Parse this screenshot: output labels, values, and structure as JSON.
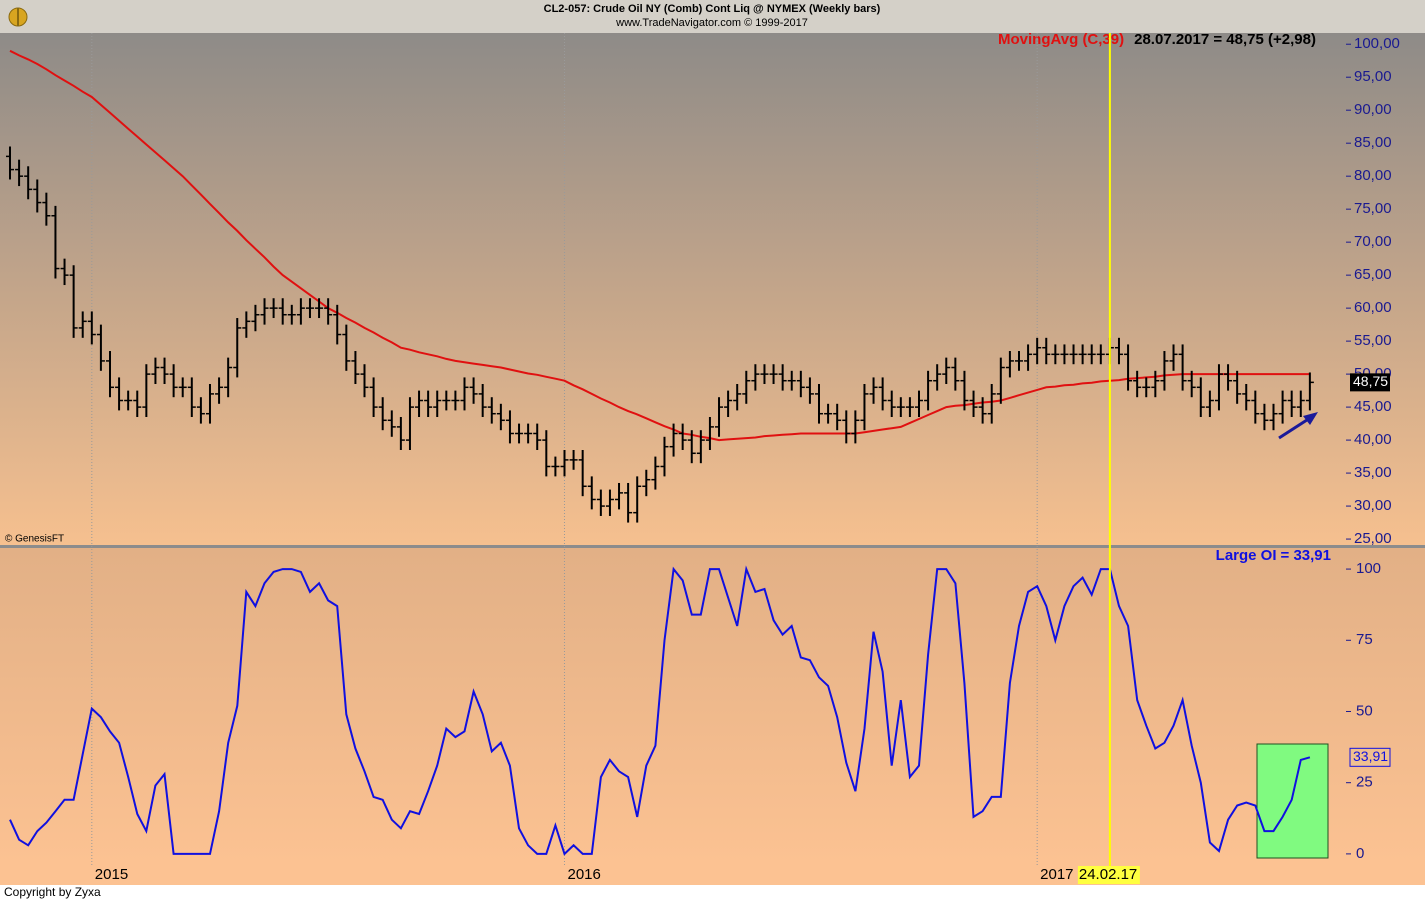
{
  "chart_data": {
    "type": "ohlc",
    "title": "CL2-057:  Crude Oil NY (Comb) Cont Liq @ NYMEX  (Weekly bars)",
    "subtitle": "www.TradeNavigator.com © 1999-2017",
    "source_note": "© GenesisFT",
    "copyright": "Copyright by Zyxa",
    "readout": "28.07.2017 = 48,75 (+2,98)",
    "highlight_category": "24.02.17",
    "categories": [
      null,
      null,
      null,
      null,
      null,
      null,
      null,
      null,
      null,
      "2015",
      null,
      null,
      null,
      null,
      null,
      null,
      null,
      null,
      null,
      null,
      null,
      null,
      null,
      null,
      null,
      null,
      null,
      null,
      null,
      null,
      null,
      null,
      null,
      null,
      null,
      null,
      null,
      null,
      null,
      null,
      null,
      null,
      null,
      null,
      null,
      null,
      null,
      null,
      null,
      null,
      null,
      null,
      null,
      null,
      null,
      null,
      null,
      null,
      null,
      null,
      null,
      "2016",
      null,
      null,
      null,
      null,
      null,
      null,
      null,
      null,
      null,
      null,
      null,
      null,
      null,
      null,
      null,
      null,
      null,
      null,
      null,
      null,
      null,
      null,
      null,
      null,
      null,
      null,
      null,
      null,
      null,
      null,
      null,
      null,
      null,
      null,
      null,
      null,
      null,
      null,
      null,
      null,
      null,
      null,
      null,
      null,
      null,
      null,
      null,
      null,
      null,
      null,
      null,
      "2017",
      null,
      null,
      null,
      null,
      null,
      null,
      null,
      "24.02.17",
      null,
      null,
      null,
      null,
      null,
      null,
      null,
      null,
      null,
      null,
      null,
      null,
      null,
      null,
      null,
      null,
      null,
      null,
      null,
      null,
      null,
      null
    ],
    "ohlc": {
      "color": "#000000",
      "open": [
        83,
        81,
        80,
        78,
        76,
        74,
        66,
        65,
        57,
        58,
        56,
        52,
        48,
        46,
        46,
        45,
        50,
        51,
        50,
        48,
        48,
        45,
        44,
        47,
        48,
        51,
        57,
        58,
        59,
        60,
        60,
        59,
        59,
        60,
        60,
        60,
        59,
        56,
        52,
        50,
        48,
        45,
        43,
        42,
        40,
        45,
        46,
        45,
        46,
        46,
        46,
        48,
        47,
        45,
        44,
        43,
        41,
        41,
        41,
        40,
        36,
        36,
        37,
        37,
        33,
        31,
        30,
        31,
        32,
        29,
        33,
        34,
        36,
        39,
        41,
        40,
        38,
        40,
        42,
        45,
        46,
        47,
        49,
        50,
        50,
        50,
        49,
        49,
        48,
        47,
        44,
        44,
        43,
        41,
        43,
        47,
        48,
        46,
        45,
        45,
        45,
        46,
        49,
        50,
        51,
        49,
        46,
        45,
        44,
        47,
        51,
        52,
        52,
        53,
        54,
        53,
        53,
        53,
        53,
        53,
        53,
        53,
        54,
        53,
        49,
        48,
        48,
        49,
        52,
        53,
        49,
        48,
        45,
        46,
        50,
        49,
        47,
        46,
        44,
        43,
        44,
        46,
        45,
        46
      ],
      "high": [
        84.5,
        82.5,
        81.5,
        79.5,
        77.5,
        75.5,
        67.5,
        66.5,
        59.5,
        59.5,
        57.5,
        53.5,
        49.5,
        47.5,
        47.5,
        51.5,
        52.5,
        52.5,
        51.5,
        49.5,
        49.5,
        46.5,
        48.5,
        49.5,
        52.5,
        58.5,
        59.5,
        60.5,
        61.5,
        61.5,
        61.5,
        60.5,
        61.5,
        61.5,
        61.5,
        61.5,
        60.5,
        57.5,
        53.5,
        51.5,
        49.5,
        46.5,
        44.5,
        43.5,
        46.5,
        47.5,
        47.5,
        47.5,
        47.5,
        47.5,
        49.5,
        49.5,
        48.5,
        46.5,
        45.5,
        44.5,
        42.5,
        42.5,
        42.5,
        41.5,
        37.5,
        38.5,
        38.5,
        38.5,
        34.5,
        32.5,
        32.5,
        33.5,
        33.5,
        34.5,
        35.5,
        37.5,
        40.5,
        42.5,
        42.5,
        41.5,
        41.5,
        43.5,
        46.5,
        47.5,
        48.5,
        50.5,
        51.5,
        51.5,
        51.5,
        51.5,
        50.5,
        50.5,
        49.5,
        48.5,
        45.5,
        45.5,
        44.5,
        44.5,
        48.5,
        49.5,
        49.5,
        47.5,
        46.5,
        46.5,
        47.5,
        50.5,
        51.5,
        52.5,
        52.5,
        50.5,
        47.5,
        46.5,
        48.5,
        52.5,
        53.5,
        53.5,
        54.5,
        55.5,
        55.5,
        54.5,
        54.5,
        54.5,
        54.5,
        54.5,
        54.5,
        55.5,
        55.5,
        54.5,
        50.5,
        49.5,
        50.5,
        53.5,
        54.5,
        54.5,
        50.5,
        49.5,
        47.5,
        51.5,
        51.5,
        50.5,
        48.5,
        47.5,
        45.5,
        45.5,
        47.5,
        47.5,
        47.5,
        50.25
      ],
      "low": [
        79.5,
        78.5,
        76.5,
        74.5,
        72.5,
        64.5,
        63.5,
        55.5,
        55.5,
        54.5,
        50.5,
        46.5,
        44.5,
        44.5,
        43.5,
        43.5,
        48.5,
        48.5,
        46.5,
        46.5,
        43.5,
        42.5,
        42.5,
        45.5,
        46.5,
        49.5,
        55.5,
        56.5,
        57.5,
        58.5,
        57.5,
        57.5,
        57.5,
        58.5,
        58.5,
        57.5,
        54.5,
        50.5,
        48.5,
        46.5,
        43.5,
        41.5,
        40.5,
        38.5,
        38.5,
        43.5,
        43.5,
        43.5,
        44.5,
        44.5,
        44.5,
        45.5,
        43.5,
        42.5,
        41.5,
        39.5,
        39.5,
        39.5,
        38.5,
        34.5,
        34.5,
        34.5,
        35.5,
        31.5,
        29.5,
        28.5,
        28.5,
        29.5,
        27.5,
        27.5,
        31.5,
        32.5,
        34.5,
        37.5,
        38.5,
        36.5,
        36.5,
        38.5,
        40.5,
        43.5,
        44.5,
        45.5,
        47.5,
        48.5,
        48.5,
        47.5,
        47.5,
        46.5,
        45.5,
        42.5,
        42.5,
        41.5,
        39.5,
        39.5,
        41.5,
        45.5,
        44.5,
        43.5,
        43.5,
        43.5,
        43.5,
        44.5,
        47.5,
        48.5,
        47.5,
        44.5,
        43.5,
        42.5,
        42.5,
        45.5,
        49.5,
        50.5,
        50.5,
        51.5,
        51.5,
        51.5,
        51.5,
        51.5,
        51.5,
        51.5,
        51.5,
        51.5,
        51.5,
        47.5,
        46.5,
        46.5,
        46.5,
        47.5,
        50.5,
        47.5,
        46.5,
        43.5,
        43.5,
        44.5,
        47.5,
        45.5,
        44.5,
        42.5,
        41.5,
        41.5,
        42.5,
        43.5,
        43.5,
        44.5
      ],
      "close": [
        81,
        80,
        78,
        76,
        74,
        66,
        65,
        57,
        58,
        56,
        52,
        48,
        46,
        46,
        45,
        50,
        51,
        50,
        48,
        48,
        45,
        44,
        47,
        48,
        51,
        57,
        58,
        59,
        60,
        60,
        59,
        59,
        60,
        60,
        60,
        59,
        56,
        52,
        50,
        48,
        45,
        43,
        42,
        40,
        45,
        46,
        45,
        46,
        46,
        46,
        48,
        47,
        45,
        44,
        43,
        41,
        41,
        41,
        40,
        36,
        36,
        37,
        37,
        33,
        31,
        30,
        31,
        32,
        29,
        33,
        34,
        36,
        39,
        41,
        40,
        38,
        40,
        42,
        45,
        46,
        47,
        49,
        50,
        50,
        50,
        49,
        49,
        48,
        47,
        44,
        44,
        43,
        41,
        43,
        47,
        48,
        46,
        45,
        45,
        45,
        46,
        49,
        50,
        51,
        49,
        46,
        45,
        44,
        47,
        51,
        52,
        52,
        53,
        54,
        53,
        53,
        53,
        53,
        53,
        53,
        53,
        54,
        53,
        49,
        48,
        48,
        49,
        52,
        53,
        49,
        48,
        45,
        46,
        50,
        49,
        47,
        46,
        44,
        43,
        44,
        46,
        45,
        46,
        48.75
      ],
      "last_label": {
        "value": 48.75,
        "label": "48,75"
      }
    },
    "moving_average": {
      "name": "MovingAvg (C,39)",
      "color": "#e01010",
      "values": [
        99,
        98.3,
        97.7,
        97,
        96.2,
        95.3,
        94.5,
        93.7,
        92.8,
        92,
        90.8,
        89.6,
        88.4,
        87.2,
        86,
        84.8,
        83.6,
        82.4,
        81.2,
        80,
        78.6,
        77.2,
        75.8,
        74.4,
        73,
        71.7,
        70.3,
        69,
        67.7,
        66.3,
        65,
        64,
        63,
        62,
        61,
        60,
        59.3,
        58.5,
        57.8,
        57,
        56.3,
        55.5,
        54.8,
        54,
        53.7,
        53.3,
        53,
        52.7,
        52.3,
        52,
        51.8,
        51.6,
        51.4,
        51.2,
        51,
        50.7,
        50.4,
        50.1,
        49.9,
        49.6,
        49.3,
        49,
        48.3,
        47.7,
        47,
        46.3,
        45.7,
        45,
        44.4,
        43.9,
        43.3,
        42.7,
        42.1,
        41.6,
        41,
        40.8,
        40.5,
        40.3,
        40,
        40.1,
        40.2,
        40.3,
        40.4,
        40.6,
        40.7,
        40.8,
        40.9,
        41,
        41,
        41,
        41,
        41,
        41,
        41,
        41.2,
        41.4,
        41.6,
        41.8,
        42,
        42.6,
        43.2,
        43.8,
        44.4,
        45,
        45.2,
        45.3,
        45.5,
        45.7,
        45.8,
        46,
        46.4,
        46.8,
        47.2,
        47.6,
        48,
        48.1,
        48.3,
        48.4,
        48.6,
        48.7,
        48.9,
        49,
        49.1,
        49.3,
        49.4,
        49.5,
        49.6,
        49.8,
        49.9,
        50,
        50,
        50,
        50,
        50,
        50,
        50,
        50,
        50,
        50,
        50,
        50,
        50,
        50,
        50
      ]
    },
    "ylim": [
      24.1,
      101.7
    ],
    "yticks": [
      {
        "value": 100,
        "label": "100,00"
      },
      {
        "value": 95,
        "label": "95,00"
      },
      {
        "value": 90,
        "label": "90,00"
      },
      {
        "value": 85,
        "label": "85,00"
      },
      {
        "value": 80,
        "label": "80,00"
      },
      {
        "value": 75,
        "label": "75,00"
      },
      {
        "value": 70,
        "label": "70,00"
      },
      {
        "value": 65,
        "label": "65,00"
      },
      {
        "value": 60,
        "label": "60,00"
      },
      {
        "value": 55,
        "label": "55,00"
      },
      {
        "value": 50,
        "label": "50,00"
      },
      {
        "value": 45,
        "label": "45,00"
      },
      {
        "value": 40,
        "label": "40,00"
      },
      {
        "value": 35,
        "label": "35,00"
      },
      {
        "value": 30,
        "label": "30,00"
      },
      {
        "value": 25,
        "label": "25,00"
      }
    ],
    "indicator": {
      "type": "line",
      "name": "Large OI",
      "readout": "= 33,91",
      "color": "#1010e0",
      "values": [
        12,
        5,
        3,
        8,
        11,
        15,
        19,
        19,
        35,
        51,
        48,
        43,
        39,
        27,
        14,
        8,
        24,
        28,
        0,
        0,
        0,
        0,
        0,
        15,
        39,
        52,
        92,
        87,
        95,
        99,
        100,
        100,
        99,
        92,
        95,
        89,
        87,
        49,
        37,
        29,
        20,
        19,
        12,
        9,
        15,
        14,
        22,
        31,
        44,
        41,
        43,
        57,
        49,
        36,
        39,
        31,
        9,
        3,
        0,
        0,
        10,
        0,
        3,
        0,
        0,
        27,
        33,
        29,
        27,
        13,
        31,
        38,
        75,
        100,
        96,
        84,
        84,
        100,
        100,
        90,
        80,
        100,
        92,
        93,
        82,
        77,
        80,
        69,
        68,
        62,
        59,
        48,
        32,
        22,
        44,
        78,
        64,
        31,
        54,
        27,
        31,
        70,
        100,
        100,
        95,
        60,
        13,
        15,
        20,
        20,
        60,
        80,
        92,
        94,
        87,
        75,
        87,
        94,
        97,
        91,
        100,
        100,
        87,
        80,
        54,
        45,
        37,
        39,
        45,
        54,
        38,
        25,
        4,
        1,
        12,
        17,
        18,
        17,
        8,
        8,
        13,
        19,
        33,
        33.91
      ],
      "last_label": {
        "value": 33.91,
        "label": "33,91"
      },
      "ylim": [
        -3.9,
        107.4
      ],
      "yticks": [
        0,
        25,
        50,
        75,
        100
      ]
    }
  }
}
